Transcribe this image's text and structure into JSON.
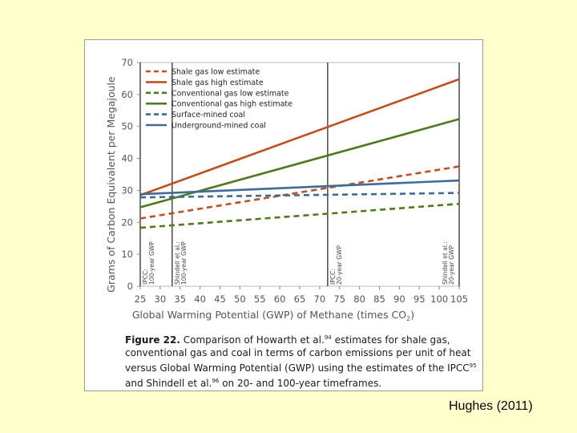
{
  "credit": "Hughes (2011)",
  "caption": {
    "fig": "Figure 22.",
    "part1": "Comparison of Howarth et al.",
    "ref1": "94",
    "part2": "estimates for shale gas, conventional gas and coal in terms of carbon emissions per unit of heat versus Global Warming Potential (GWP) using the estimates of the IPCC",
    "ref2": "95",
    "part3": "and Shindell et al.",
    "ref3": "96",
    "part4": "on 20- and 100-year timeframes."
  },
  "chart_data": {
    "type": "line",
    "title": "",
    "xlabel_main": "Global Warming Potential (GWP) of Methane (times CO",
    "xlabel_sub": "2",
    "xlabel_end": ")",
    "ylabel": "Grams of Carbon Equivalent per Megajoule",
    "xlim": [
      25,
      105
    ],
    "ylim": [
      0,
      70
    ],
    "xticks": [
      25,
      30,
      35,
      40,
      45,
      50,
      55,
      60,
      65,
      70,
      75,
      80,
      85,
      90,
      95,
      100,
      105
    ],
    "yticks": [
      0,
      10,
      20,
      30,
      40,
      50,
      60,
      70
    ],
    "series": [
      {
        "name": "Shale gas low estimate",
        "color": "#c0501f",
        "dash": true,
        "x": [
          25,
          105
        ],
        "y": [
          21.2,
          37.5
        ]
      },
      {
        "name": "Shale gas high estimate",
        "color": "#c0501f",
        "dash": false,
        "x": [
          25,
          105
        ],
        "y": [
          28.5,
          64.8
        ]
      },
      {
        "name": "Conventional gas low estimate",
        "color": "#4f7a1c",
        "dash": true,
        "x": [
          25,
          105
        ],
        "y": [
          18.3,
          25.8
        ]
      },
      {
        "name": "Conventional gas high estimate",
        "color": "#4f7a1c",
        "dash": false,
        "x": [
          25,
          105
        ],
        "y": [
          24.7,
          52.3
        ]
      },
      {
        "name": "Surface-mined coal",
        "color": "#3f6b94",
        "dash": true,
        "x": [
          25,
          105
        ],
        "y": [
          27.8,
          29.2
        ]
      },
      {
        "name": "Underground-mined coal",
        "color": "#3f6b94",
        "dash": false,
        "x": [
          25,
          105
        ],
        "y": [
          28.8,
          33.1
        ]
      }
    ],
    "vlines": [
      {
        "x": 25,
        "label1": "IPCC:",
        "label2": "100-year GWP"
      },
      {
        "x": 33,
        "label1": "Shindell et al.:",
        "label2": "100-year GWP"
      },
      {
        "x": 72,
        "label1": "IPCC:",
        "label2": "20-year GWP"
      },
      {
        "x": 105,
        "label1": "Shindell et al.:",
        "label2": "20-year GWP"
      }
    ]
  }
}
